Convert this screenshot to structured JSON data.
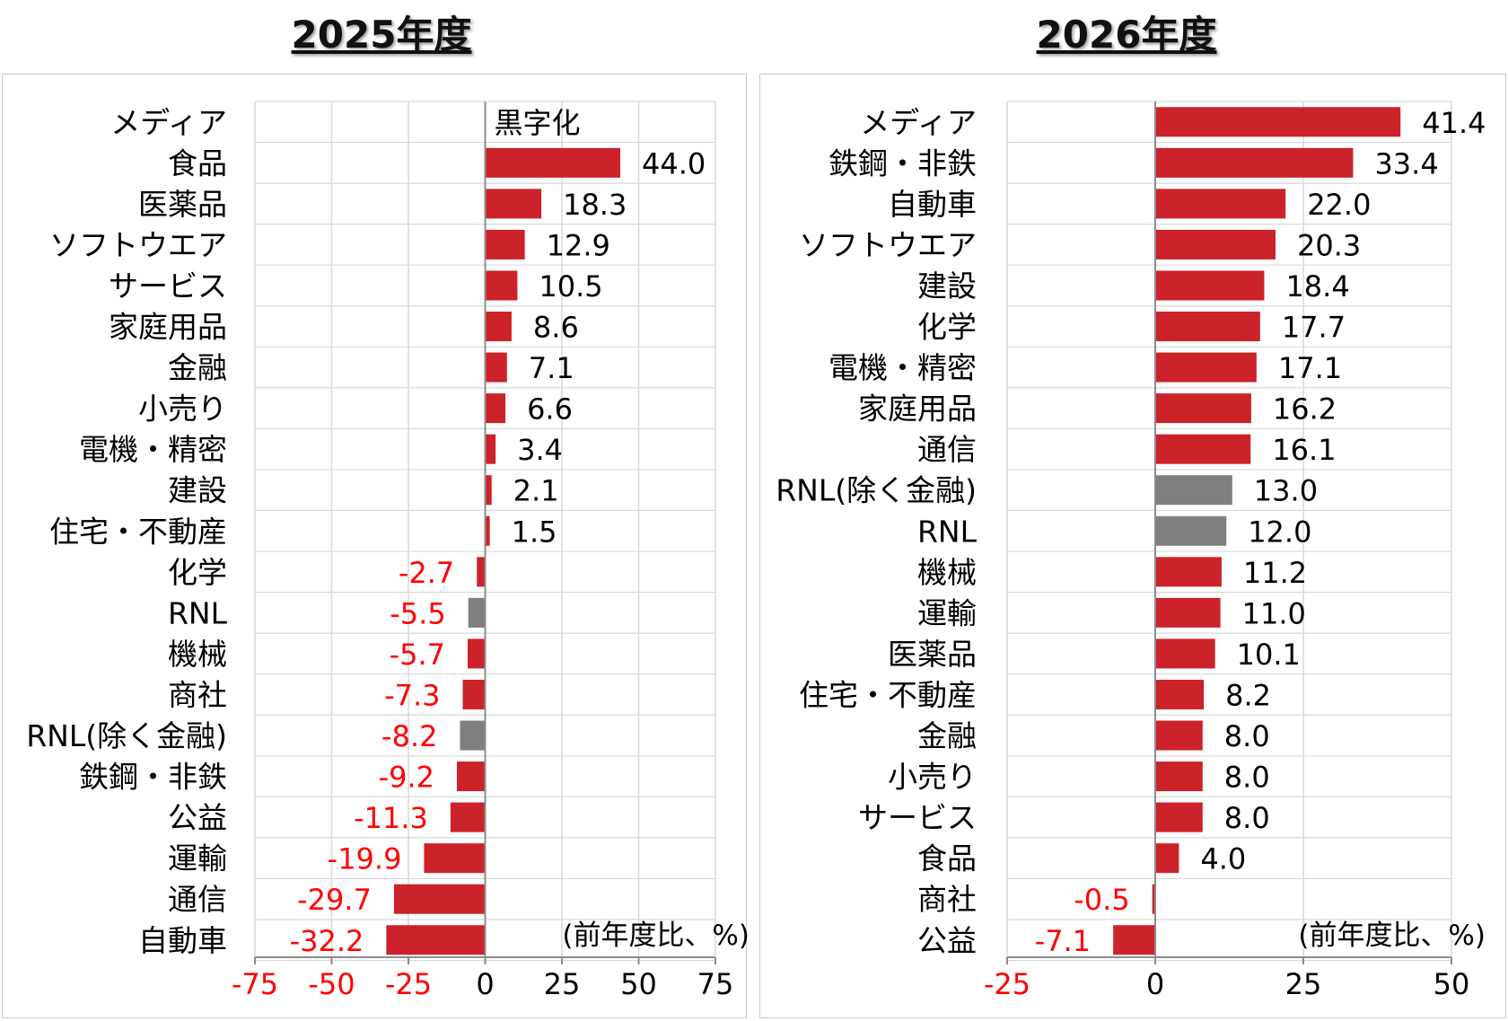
{
  "chart_data": [
    {
      "type": "bar",
      "orientation": "horizontal",
      "title": "2025年度",
      "unit_note": "(前年度比、%)",
      "xlim": [
        -75,
        75
      ],
      "xticks": [
        -75,
        -50,
        -25,
        0,
        25,
        50,
        75
      ],
      "grid": true,
      "colors": {
        "default": "#cc2229",
        "RNL": "#7f7f7f",
        "negative_label": "#ff0000"
      },
      "categories": [
        "メディア",
        "食品",
        "医薬品",
        "ソフトウエア",
        "サービス",
        "家庭用品",
        "金融",
        "小売り",
        "電機・精密",
        "建設",
        "住宅・不動産",
        "化学",
        "RNL",
        "機械",
        "商社",
        "RNL(除く金融)",
        "鉄鋼・非鉄",
        "公益",
        "運輸",
        "通信",
        "自動車"
      ],
      "values": [
        null,
        44.0,
        18.3,
        12.9,
        10.5,
        8.6,
        7.1,
        6.6,
        3.4,
        2.1,
        1.5,
        -2.7,
        -5.5,
        -5.7,
        -7.3,
        -8.2,
        -9.2,
        -11.3,
        -19.9,
        -29.7,
        -32.2
      ],
      "value_labels": [
        "黒字化",
        "44.0",
        "18.3",
        "12.9",
        "10.5",
        "8.6",
        "7.1",
        "6.6",
        "3.4",
        "2.1",
        "1.5",
        "-2.7",
        "-5.5",
        "-5.7",
        "-7.3",
        "-8.2",
        "-9.2",
        "-11.3",
        "-19.9",
        "-29.7",
        "-32.2"
      ]
    },
    {
      "type": "bar",
      "orientation": "horizontal",
      "title": "2026年度",
      "unit_note": "(前年度比、%)",
      "xlim": [
        -25,
        50
      ],
      "xticks": [
        -25,
        0,
        25,
        50
      ],
      "grid": true,
      "colors": {
        "default": "#cc2229",
        "RNL": "#7f7f7f",
        "negative_label": "#ff0000"
      },
      "categories": [
        "メディア",
        "鉄鋼・非鉄",
        "自動車",
        "ソフトウエア",
        "建設",
        "化学",
        "電機・精密",
        "家庭用品",
        "通信",
        "RNL(除く金融)",
        "RNL",
        "機械",
        "運輸",
        "医薬品",
        "住宅・不動産",
        "金融",
        "小売り",
        "サービス",
        "食品",
        "商社",
        "公益"
      ],
      "values": [
        41.4,
        33.4,
        22.0,
        20.3,
        18.4,
        17.7,
        17.1,
        16.2,
        16.1,
        13.0,
        12.0,
        11.2,
        11.0,
        10.1,
        8.2,
        8.0,
        8.0,
        8.0,
        4.0,
        -0.5,
        -7.1
      ],
      "value_labels": [
        "41.4",
        "33.4",
        "22.0",
        "20.3",
        "18.4",
        "17.7",
        "17.1",
        "16.2",
        "16.1",
        "13.0",
        "12.0",
        "11.2",
        "11.0",
        "10.1",
        "8.2",
        "8.0",
        "8.0",
        "8.0",
        "4.0",
        "-0.5",
        "-7.1"
      ]
    }
  ]
}
